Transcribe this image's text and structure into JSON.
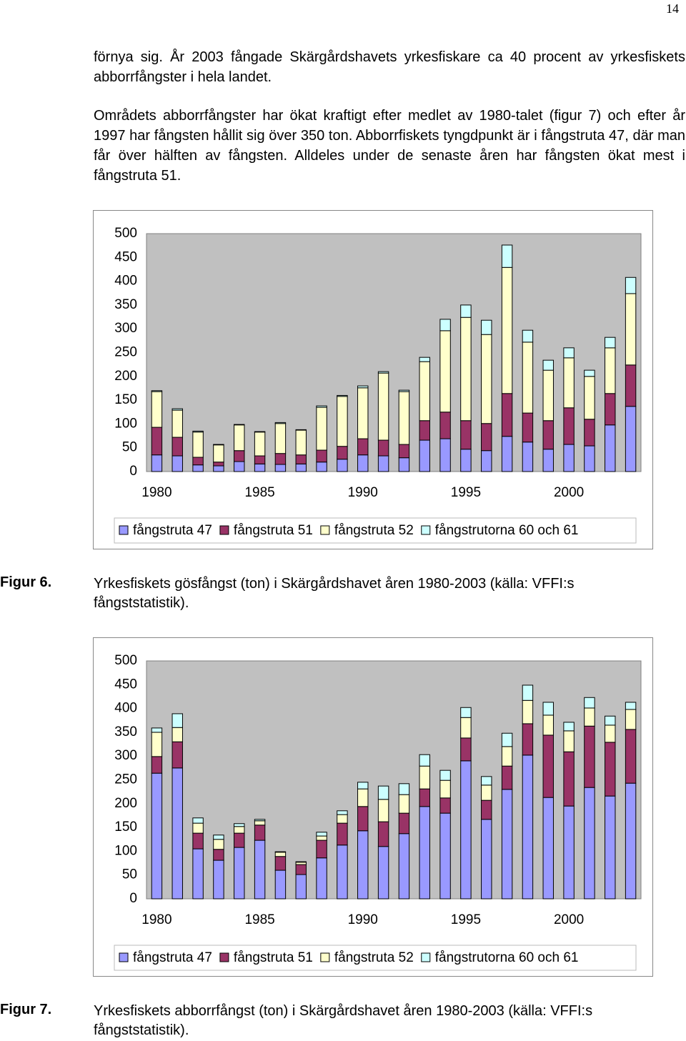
{
  "page_number": "14",
  "paragraphs": [
    "förnya sig. År 2003 fångade Skärgårdshavets yrkesfiskare ca 40 procent av yrkesfiskets abborrfångster i hela landet.",
    "Områdets abborrfångster har ökat kraftigt efter medlet av 1980-talet (figur 7) och efter år 1997 har fångsten hållit sig över 350 ton. Abborrfiskets tyngdpunkt är i fångstruta 47, där man får över hälften av fångsten. Alldeles under de senaste åren har fångsten ökat mest i fångstruta 51."
  ],
  "chart_data": [
    {
      "type": "bar",
      "stacked": true,
      "plot_background": "#c0c0c0",
      "x": [
        1980,
        1981,
        1982,
        1983,
        1984,
        1985,
        1986,
        1987,
        1988,
        1989,
        1990,
        1991,
        1992,
        1993,
        1994,
        1995,
        1996,
        1997,
        1998,
        1999,
        2000,
        2001,
        2002,
        2003
      ],
      "xlim": [
        1979.5,
        2003.5
      ],
      "xticks": [
        1980,
        1985,
        1990,
        1995,
        2000
      ],
      "ylim": [
        0,
        500
      ],
      "yticks": [
        0,
        50,
        100,
        150,
        200,
        250,
        300,
        350,
        400,
        450,
        500
      ],
      "series": [
        {
          "name": "fångstruta 47",
          "color": "#9999ff",
          "values": [
            35,
            33,
            14,
            12,
            21,
            16,
            15,
            16,
            20,
            26,
            35,
            33,
            29,
            66,
            69,
            47,
            44,
            74,
            62,
            47,
            57,
            54,
            98,
            137
          ]
        },
        {
          "name": "fångstruta 51",
          "color": "#993366",
          "values": [
            58,
            39,
            16,
            8,
            23,
            17,
            23,
            19,
            25,
            27,
            34,
            33,
            28,
            41,
            56,
            60,
            57,
            90,
            61,
            60,
            77,
            56,
            66,
            87
          ]
        },
        {
          "name": "fångstruta 52",
          "color": "#ffffcc",
          "values": [
            75,
            57,
            53,
            36,
            54,
            50,
            63,
            52,
            90,
            105,
            107,
            141,
            111,
            124,
            171,
            217,
            187,
            265,
            149,
            106,
            105,
            90,
            96,
            150
          ]
        },
        {
          "name": "fångstrutorna 60 och 61",
          "color": "#ccffff",
          "values": [
            2,
            3,
            2,
            1,
            1,
            1,
            2,
            1,
            3,
            2,
            4,
            3,
            3,
            9,
            24,
            26,
            30,
            47,
            25,
            21,
            21,
            13,
            22,
            34
          ]
        }
      ]
    },
    {
      "type": "bar",
      "stacked": true,
      "plot_background": "#c0c0c0",
      "x": [
        1980,
        1981,
        1982,
        1983,
        1984,
        1985,
        1986,
        1987,
        1988,
        1989,
        1990,
        1991,
        1992,
        1993,
        1994,
        1995,
        1996,
        1997,
        1998,
        1999,
        2000,
        2001,
        2002,
        2003
      ],
      "xlim": [
        1979.5,
        2003.5
      ],
      "xticks": [
        1980,
        1985,
        1990,
        1995,
        2000
      ],
      "ylim": [
        0,
        500
      ],
      "yticks": [
        0,
        50,
        100,
        150,
        200,
        250,
        300,
        350,
        400,
        450,
        500
      ],
      "series": [
        {
          "name": "fångstruta 47",
          "color": "#9999ff",
          "values": [
            264,
            275,
            105,
            81,
            108,
            123,
            60,
            51,
            86,
            113,
            143,
            110,
            137,
            194,
            180,
            290,
            167,
            230,
            302,
            213,
            195,
            234,
            216,
            243
          ]
        },
        {
          "name": "fångstruta 51",
          "color": "#993366",
          "values": [
            35,
            55,
            33,
            23,
            30,
            32,
            29,
            21,
            37,
            46,
            51,
            52,
            43,
            37,
            32,
            48,
            40,
            49,
            66,
            131,
            114,
            129,
            113,
            113
          ]
        },
        {
          "name": "fångstruta 52",
          "color": "#ffffcc",
          "values": [
            51,
            30,
            21,
            21,
            14,
            9,
            9,
            5,
            9,
            18,
            37,
            47,
            39,
            48,
            37,
            43,
            32,
            41,
            49,
            42,
            44,
            38,
            36,
            42
          ]
        },
        {
          "name": "fångstrutorna 60 och 61",
          "color": "#ccffff",
          "values": [
            9,
            29,
            11,
            9,
            6,
            3,
            1,
            1,
            8,
            8,
            14,
            28,
            23,
            24,
            21,
            21,
            18,
            28,
            32,
            27,
            18,
            22,
            19,
            15
          ]
        }
      ]
    }
  ],
  "captions": [
    {
      "label": "Figur 6.",
      "text": "Yrkesfiskets gösfångst (ton) i Skärgårdshavet åren 1980-2003 (källa: VFFI:s fångststatistik)."
    },
    {
      "label": "Figur 7.",
      "text": "Yrkesfiskets abborrfångst (ton) i Skärgårdshavet åren 1980-2003 (källa: VFFI:s fångststatistik)."
    }
  ]
}
